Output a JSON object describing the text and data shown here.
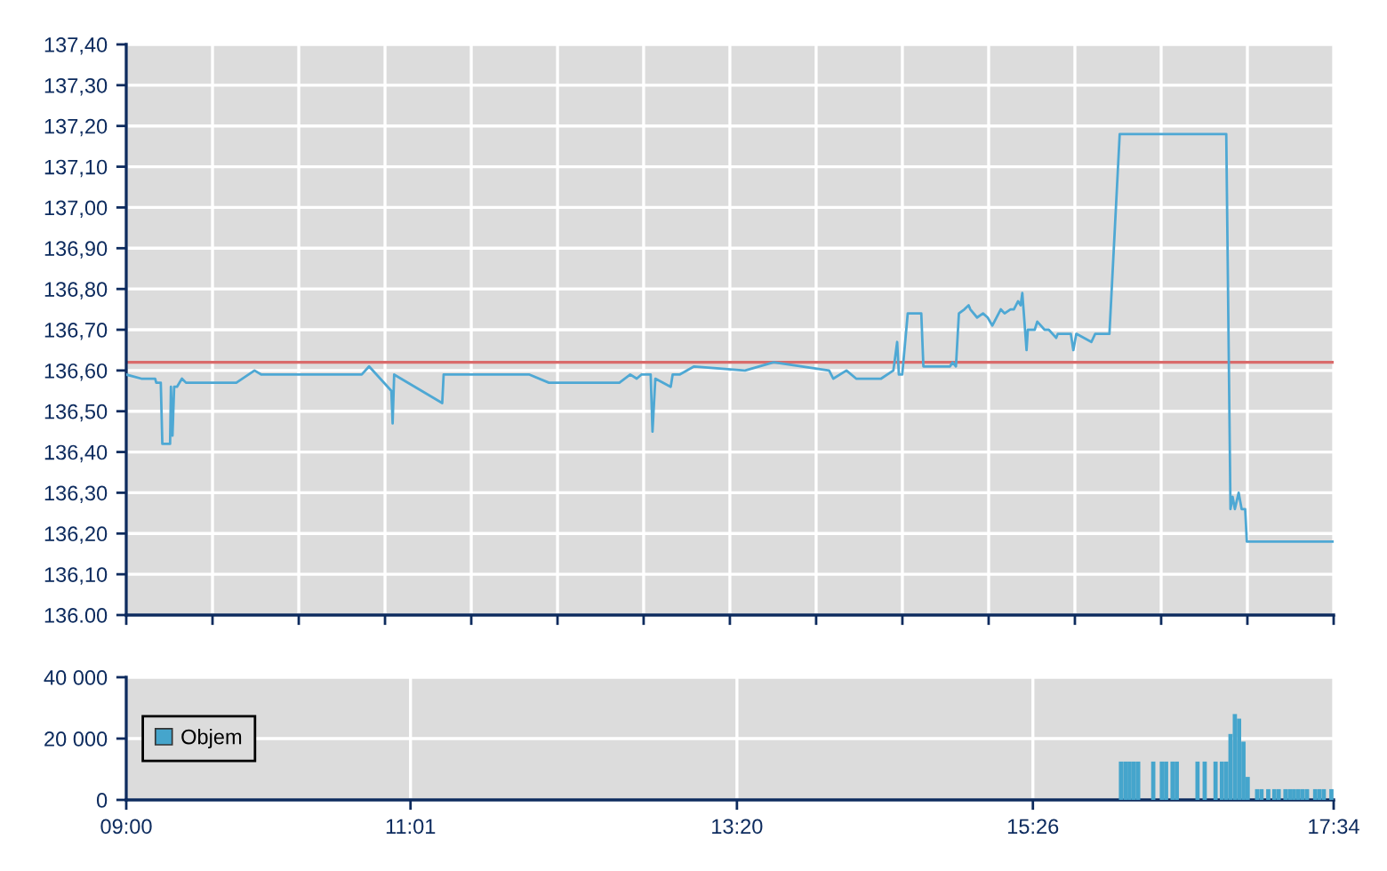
{
  "chart_data": [
    {
      "type": "line",
      "color": "#4ea8d4",
      "x": [
        9.0,
        9.107,
        9.205,
        9.213,
        9.245,
        9.256,
        9.311,
        9.317,
        9.328,
        9.34,
        9.36,
        9.395,
        9.424,
        9.781,
        9.91,
        9.959,
        10.671,
        10.723,
        10.881,
        10.89,
        10.901,
        11.242,
        11.252,
        11.861,
        11.999,
        12.499,
        12.576,
        12.622,
        12.655,
        12.721,
        12.734,
        12.754,
        12.863,
        12.877,
        12.926,
        13.029,
        13.39,
        13.594,
        13.987,
        14.017,
        14.11,
        14.179,
        14.356,
        14.443,
        14.47,
        14.482,
        14.506,
        14.545,
        14.641,
        14.656,
        14.845,
        14.863,
        14.887,
        14.908,
        14.947,
        14.977,
        14.989,
        15.037,
        15.079,
        15.112,
        15.145,
        15.205,
        15.232,
        15.274,
        15.298,
        15.328,
        15.346,
        15.358,
        15.388,
        15.397,
        15.446,
        15.464,
        15.516,
        15.546,
        15.598,
        15.61,
        15.702,
        15.72,
        15.741,
        15.848,
        15.875,
        15.976,
        16.049,
        16.805,
        16.835,
        16.85,
        16.866,
        16.893,
        16.914,
        16.939,
        16.951,
        17.567
      ],
      "values": [
        136.59,
        136.58,
        136.58,
        136.57,
        136.57,
        136.42,
        136.42,
        136.56,
        136.44,
        136.56,
        136.56,
        136.58,
        136.57,
        136.57,
        136.6,
        136.59,
        136.59,
        136.61,
        136.55,
        136.47,
        136.59,
        136.52,
        136.59,
        136.59,
        136.57,
        136.57,
        136.59,
        136.58,
        136.59,
        136.59,
        136.45,
        136.58,
        136.56,
        136.59,
        136.59,
        136.61,
        136.6,
        136.62,
        136.6,
        136.58,
        136.6,
        136.58,
        136.58,
        136.6,
        136.67,
        136.59,
        136.59,
        136.74,
        136.74,
        136.61,
        136.61,
        136.62,
        136.61,
        136.74,
        136.75,
        136.76,
        136.75,
        136.73,
        136.74,
        136.73,
        136.71,
        136.75,
        136.74,
        136.75,
        136.75,
        136.77,
        136.76,
        136.79,
        136.65,
        136.7,
        136.7,
        136.72,
        136.7,
        136.7,
        136.68,
        136.69,
        136.69,
        136.65,
        136.69,
        136.67,
        136.69,
        136.69,
        137.18,
        137.18,
        136.26,
        136.29,
        136.26,
        136.3,
        136.26,
        136.26,
        136.18,
        136.18
      ],
      "xlim": [
        9.0,
        17.567
      ],
      "xticks": [
        {
          "value": 9.0,
          "label": null
        },
        {
          "value": 9.612,
          "label": null
        },
        {
          "value": 10.224,
          "label": null
        },
        {
          "value": 10.836,
          "label": null
        },
        {
          "value": 11.448,
          "label": null
        },
        {
          "value": 12.06,
          "label": null
        },
        {
          "value": 12.671,
          "label": null
        },
        {
          "value": 13.283,
          "label": null
        },
        {
          "value": 13.895,
          "label": null
        },
        {
          "value": 14.507,
          "label": null
        },
        {
          "value": 15.119,
          "label": null
        },
        {
          "value": 15.731,
          "label": null
        },
        {
          "value": 16.343,
          "label": null
        },
        {
          "value": 16.955,
          "label": null
        },
        {
          "value": 17.567,
          "label": null
        }
      ],
      "ylim": [
        136.0,
        137.4
      ],
      "yticks": [
        {
          "value": 136.0,
          "label": "136.00"
        },
        {
          "value": 136.1,
          "label": "136,10"
        },
        {
          "value": 136.2,
          "label": "136,20"
        },
        {
          "value": 136.3,
          "label": "136,30"
        },
        {
          "value": 136.4,
          "label": "136,40"
        },
        {
          "value": 136.5,
          "label": "136,50"
        },
        {
          "value": 136.6,
          "label": "136,60"
        },
        {
          "value": 136.7,
          "label": "136,70"
        },
        {
          "value": 136.8,
          "label": "136,80"
        },
        {
          "value": 136.9,
          "label": "136,90"
        },
        {
          "value": 137.0,
          "label": "137,00"
        },
        {
          "value": 137.1,
          "label": "137,10"
        },
        {
          "value": 137.2,
          "label": "137,20"
        },
        {
          "value": 137.3,
          "label": "137,30"
        },
        {
          "value": 137.4,
          "label": "137,40"
        }
      ],
      "ref_lines": [
        {
          "axis": "y",
          "value": 136.62,
          "color": "#d96b6b"
        }
      ],
      "grid": true,
      "tick_labels": "y"
    },
    {
      "type": "bar",
      "x": [
        16.058,
        16.089,
        16.119,
        16.15,
        16.18,
        16.287,
        16.348,
        16.378,
        16.424,
        16.454,
        16.601,
        16.652,
        16.729,
        16.774,
        16.805,
        16.835,
        16.866,
        16.896,
        16.927,
        16.957,
        17.024,
        17.055,
        17.103,
        17.146,
        17.177,
        17.225,
        17.256,
        17.286,
        17.317,
        17.347,
        17.378,
        17.436,
        17.466,
        17.497,
        17.551
      ],
      "series": [
        {
          "name": "Objem",
          "color": "#45a5cc",
          "values": [
            12500,
            12500,
            12500,
            12500,
            12500,
            12500,
            12500,
            12500,
            12500,
            12500,
            12500,
            12500,
            12500,
            12500,
            12500,
            21500,
            28000,
            26500,
            19000,
            7500,
            3500,
            3500,
            3500,
            3500,
            3500,
            3500,
            3500,
            3500,
            3500,
            3500,
            3500,
            3500,
            3500,
            3500,
            3500
          ]
        }
      ],
      "xlim": [
        9.0,
        17.567
      ],
      "xticks": [
        {
          "value": 9.0,
          "label": "09:00"
        },
        {
          "value": 11.017,
          "label": "11:01"
        },
        {
          "value": 13.333,
          "label": "13:20"
        },
        {
          "value": 15.433,
          "label": "15:26"
        },
        {
          "value": 17.567,
          "label": "17:34"
        }
      ],
      "ylim": [
        0,
        40000
      ],
      "yticks": [
        0,
        {
          "value": 20000,
          "label": "20 000"
        },
        {
          "value": 40000,
          "label": "40 000"
        }
      ],
      "grid": true,
      "legend": "center left"
    }
  ]
}
